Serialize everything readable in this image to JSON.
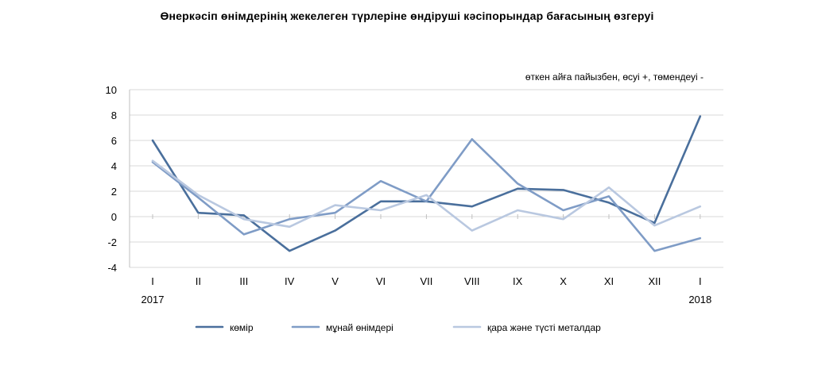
{
  "chart_data": {
    "type": "line",
    "title": "Өнеркәсіп өнімдерінің  жекелеген түрлеріне өндіруші кәсіпорындар  бағасының  өзгеруі",
    "note": "өткен айға пайызбен, өсуі +, төмендеуі -",
    "categories": [
      "I",
      "II",
      "III",
      "IV",
      "V",
      "VI",
      "VII",
      "VIII",
      "IX",
      "X",
      "XI",
      "XII",
      "I"
    ],
    "year_labels": [
      {
        "index": 0,
        "text": "2017"
      },
      {
        "index": 12,
        "text": "2018"
      }
    ],
    "ylim": [
      -4,
      10
    ],
    "yticks": [
      -4,
      -2,
      0,
      2,
      4,
      6,
      8,
      10
    ],
    "grid": true,
    "legend_position": "bottom",
    "series": [
      {
        "name": "көмір",
        "color": "#4a6f9c",
        "values": [
          6.0,
          0.3,
          0.1,
          -2.7,
          -1.1,
          1.2,
          1.2,
          0.8,
          2.2,
          2.1,
          1.1,
          -0.5,
          7.9
        ]
      },
      {
        "name": "мұнай өнімдері",
        "color": "#7f9cc6",
        "values": [
          4.3,
          1.5,
          -1.4,
          -0.2,
          0.3,
          2.8,
          1.2,
          6.1,
          2.6,
          0.5,
          1.6,
          -2.7,
          -1.7
        ]
      },
      {
        "name": "қара және түсті металдар",
        "color": "#b9c8e0",
        "values": [
          4.4,
          1.7,
          -0.2,
          -0.8,
          0.9,
          0.5,
          1.7,
          -1.1,
          0.5,
          -0.2,
          2.3,
          -0.7,
          0.8
        ]
      }
    ]
  }
}
